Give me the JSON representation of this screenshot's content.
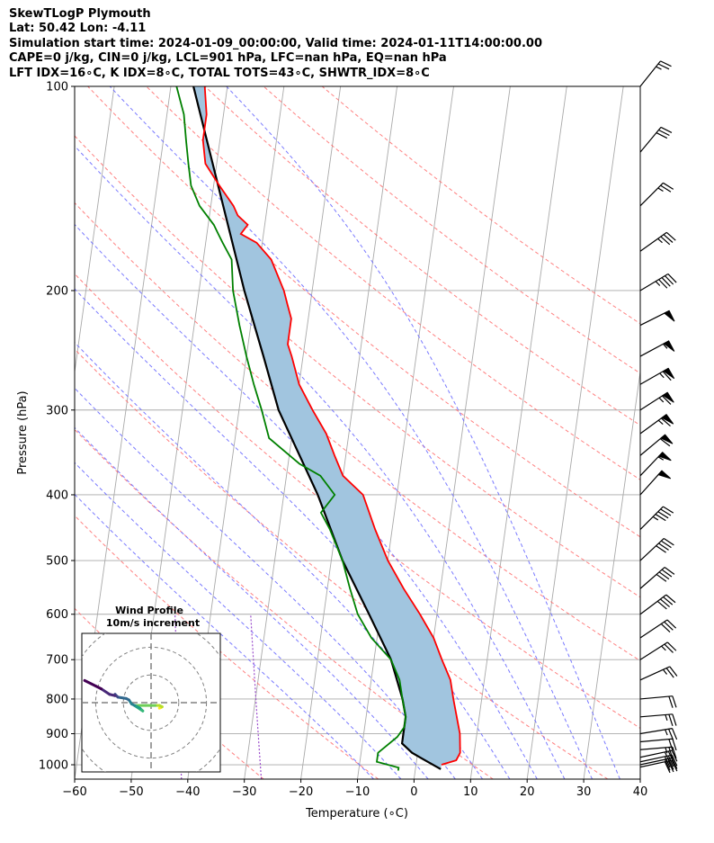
{
  "header": {
    "line1": "SkewTLogP Plymouth",
    "line2": "Lat: 50.42   Lon: -4.11",
    "line3": "Simulation start time: 2024-01-09_00:00:00, Valid time: 2024-01-11T14:00:00.00",
    "line4": "CAPE=0 j/kg, CIN=0 j/kg, LCL=901 hPa, LFC=nan hPa, EQ=nan hPa",
    "line5": "LFT IDX=16∘C, K IDX=8∘C, TOTAL TOTS=43∘C, SHWTR_IDX=8∘C"
  },
  "chart_data": [
    {
      "type": "line",
      "chart_kind": "skew-T log-P diagram",
      "xlabel": "Temperature (∘C)",
      "ylabel": "Pressure (hPa)",
      "xlim": [
        -60,
        40
      ],
      "ylim": [
        1050,
        100
      ],
      "y_scale": "log",
      "x_ticks": [
        -60,
        -50,
        -40,
        -30,
        -20,
        -10,
        0,
        10,
        20,
        30,
        40
      ],
      "x_tick_labels": [
        "−60",
        "−50",
        "−40",
        "−30",
        "−20",
        "−10",
        "0",
        "10",
        "20",
        "30",
        "40"
      ],
      "y_ticks": [
        100,
        200,
        300,
        400,
        500,
        600,
        700,
        800,
        900,
        1000
      ],
      "y_tick_labels": [
        "100",
        "200",
        "300",
        "400",
        "500",
        "600",
        "700",
        "800",
        "900",
        "1000"
      ],
      "grid": true,
      "colors": {
        "temperature": "#ff0000",
        "dewpoint": "#008000",
        "parcel": "#000000",
        "cape_fill": "#a1c5df",
        "dry_adiabats": "#ff6a6a",
        "moist_adiabats": "#6a6aff",
        "mixing_ratio": "#9b4dcc",
        "isotherms": "#a9a9a9"
      },
      "series": [
        {
          "role": "temperature",
          "points": [
            [
              4.5,
              1000
            ],
            [
              7,
              985
            ],
            [
              7.5,
              960
            ],
            [
              7,
              900
            ],
            [
              5,
              800
            ],
            [
              4,
              750
            ],
            [
              2,
              700
            ],
            [
              0,
              650
            ],
            [
              -3,
              600
            ],
            [
              -6.5,
              550
            ],
            [
              -10,
              500
            ],
            [
              -13,
              450
            ],
            [
              -16,
              400
            ],
            [
              -20,
              375
            ],
            [
              -22,
              350
            ],
            [
              -24,
              325
            ],
            [
              -27,
              300
            ],
            [
              -30,
              275
            ],
            [
              -32,
              250
            ],
            [
              -33,
              240
            ],
            [
              -33,
              230
            ],
            [
              -33,
              220
            ],
            [
              -34,
              210
            ],
            [
              -35,
              200
            ],
            [
              -38,
              180
            ],
            [
              -41,
              170
            ],
            [
              -44,
              165
            ],
            [
              -43,
              160
            ],
            [
              -45,
              155
            ],
            [
              -46,
              150
            ],
            [
              -49,
              140
            ],
            [
              -52,
              130
            ],
            [
              -53,
              120
            ],
            [
              -53,
              110
            ],
            [
              -54,
              100
            ]
          ]
        },
        {
          "role": "dewpoint",
          "points": [
            [
              -3,
              1020
            ],
            [
              -3,
              1010
            ],
            [
              -7,
              990
            ],
            [
              -7,
              960
            ],
            [
              -4,
              910
            ],
            [
              -3,
              880
            ],
            [
              -3,
              850
            ],
            [
              -4,
              800
            ],
            [
              -5,
              750
            ],
            [
              -7,
              700
            ],
            [
              -11,
              650
            ],
            [
              -14,
              600
            ],
            [
              -16,
              550
            ],
            [
              -18,
              500
            ],
            [
              -21,
              450
            ],
            [
              -23,
              425
            ],
            [
              -21,
              400
            ],
            [
              -24,
              375
            ],
            [
              -28,
              360
            ],
            [
              -34,
              330
            ],
            [
              -36,
              300
            ],
            [
              -38,
              275
            ],
            [
              -40,
              250
            ],
            [
              -42,
              225
            ],
            [
              -44,
              200
            ],
            [
              -45,
              180
            ],
            [
              -47,
              170
            ],
            [
              -48,
              165
            ],
            [
              -49,
              160
            ],
            [
              -52,
              150
            ],
            [
              -54,
              140
            ],
            [
              -55,
              130
            ],
            [
              -56,
              120
            ],
            [
              -57,
              110
            ],
            [
              -59,
              100
            ]
          ]
        },
        {
          "role": "parcel",
          "points": [
            [
              4.5,
              1015
            ],
            [
              1,
              980
            ],
            [
              -1,
              960
            ],
            [
              -3,
              930
            ],
            [
              -3,
              901
            ],
            [
              -3,
              850
            ],
            [
              -4,
              800
            ],
            [
              -7,
              700
            ],
            [
              -12,
              600
            ],
            [
              -18,
              500
            ],
            [
              -24,
              400
            ],
            [
              -33,
              300
            ],
            [
              -37,
              250
            ],
            [
              -42,
              200
            ],
            [
              -56,
              100
            ]
          ]
        }
      ],
      "wind_barbs": [
        {
          "p": 1008,
          "u": -14,
          "v": -3
        },
        {
          "p": 1000,
          "u": -14,
          "v": -3
        },
        {
          "p": 990,
          "u": -14,
          "v": -3
        },
        {
          "p": 975,
          "u": -14,
          "v": -3
        },
        {
          "p": 950,
          "u": -12,
          "v": -1
        },
        {
          "p": 925,
          "u": -11,
          "v": -1
        },
        {
          "p": 900,
          "u": -12,
          "v": -2
        },
        {
          "p": 850,
          "u": -12,
          "v": -1
        },
        {
          "p": 800,
          "u": -11,
          "v": -1
        },
        {
          "p": 750,
          "u": -11,
          "v": -5
        },
        {
          "p": 700,
          "u": -11,
          "v": -7
        },
        {
          "p": 650,
          "u": -12,
          "v": -8
        },
        {
          "p": 600,
          "u": -16,
          "v": -12
        },
        {
          "p": 550,
          "u": -16,
          "v": -14
        },
        {
          "p": 500,
          "u": -15,
          "v": -14
        },
        {
          "p": 450,
          "u": -17,
          "v": -17
        },
        {
          "p": 400,
          "u": -18,
          "v": -20
        },
        {
          "p": 375,
          "u": -20,
          "v": -21
        },
        {
          "p": 350,
          "u": -24,
          "v": -20
        },
        {
          "p": 325,
          "u": -26,
          "v": -19
        },
        {
          "p": 300,
          "u": -28,
          "v": -18
        },
        {
          "p": 275,
          "u": -28,
          "v": -16
        },
        {
          "p": 250,
          "u": -26,
          "v": -14
        },
        {
          "p": 225,
          "u": -24,
          "v": -12
        },
        {
          "p": 200,
          "u": -20,
          "v": -12
        },
        {
          "p": 175,
          "u": -14,
          "v": -10
        },
        {
          "p": 150,
          "u": -10,
          "v": -10
        },
        {
          "p": 125,
          "u": -10,
          "v": -12
        },
        {
          "p": 100,
          "u": -8,
          "v": -10
        }
      ]
    },
    {
      "type": "line",
      "chart_kind": "hodograph",
      "title": "Wind Profile",
      "subtitle": "10m/s increment",
      "ring_increment": 10,
      "xlim": [
        -25,
        25
      ],
      "ylim": [
        -25,
        25
      ],
      "colormap": "viridis",
      "points": [
        [
          3,
          -2
        ],
        [
          3.5,
          -1.8
        ],
        [
          4,
          -1.5
        ],
        [
          3,
          -1
        ],
        [
          1.5,
          -1
        ],
        [
          -2,
          -1
        ],
        [
          -6,
          -1
        ],
        [
          -3,
          -3
        ],
        [
          -4,
          -2
        ],
        [
          -5,
          -1.5
        ],
        [
          -6,
          -1
        ],
        [
          -7,
          -0.5
        ],
        [
          -8,
          1
        ],
        [
          -9,
          1.5
        ],
        [
          -12,
          2
        ],
        [
          -13,
          3
        ],
        [
          -13,
          2.5
        ],
        [
          -15,
          3
        ],
        [
          -18,
          5
        ],
        [
          -20,
          6
        ],
        [
          -24,
          8
        ]
      ]
    }
  ]
}
